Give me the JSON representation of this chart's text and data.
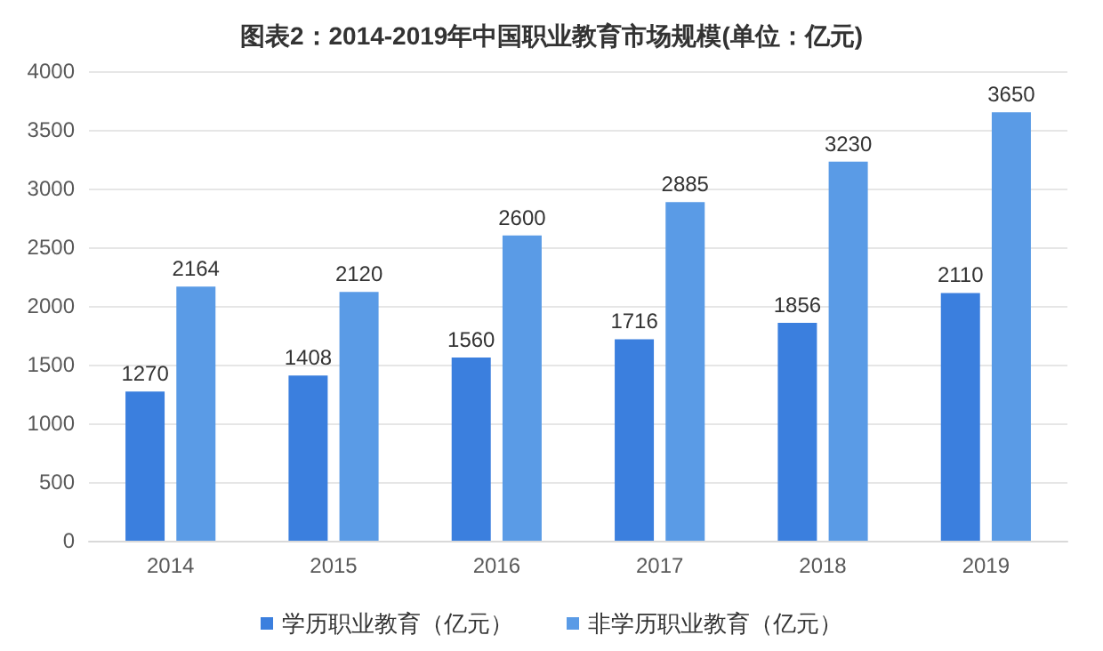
{
  "chart_data": {
    "type": "bar",
    "title": "图表2：2014-2019年中国职业教育市场规模(单位：亿元)",
    "categories": [
      "2014",
      "2015",
      "2016",
      "2017",
      "2018",
      "2019"
    ],
    "series": [
      {
        "name": "学历职业教育（亿元）",
        "color": "#3b7fde",
        "values": [
          1270,
          1408,
          1560,
          1716,
          1856,
          2110
        ]
      },
      {
        "name": "非学历职业教育（亿元）",
        "color": "#5a9be6",
        "values": [
          2164,
          2120,
          2600,
          2885,
          3230,
          3650
        ]
      }
    ],
    "ylim": [
      0,
      4000
    ],
    "yticks": [
      0,
      500,
      1000,
      1500,
      2000,
      2500,
      3000,
      3500,
      4000
    ],
    "grid": "y",
    "legend": "bottom",
    "data_labels": true
  }
}
